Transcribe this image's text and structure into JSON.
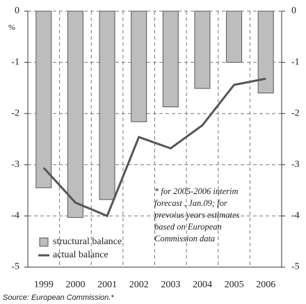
{
  "chart_data": {
    "type": "bar_line",
    "categories": [
      "1999",
      "2000",
      "2001",
      "2002",
      "2003",
      "2004",
      "2005",
      "2006"
    ],
    "series": [
      {
        "name": "structural balance",
        "type": "bar",
        "color": "#bdbdbd",
        "values": [
          -3.45,
          -4.03,
          -3.68,
          -2.16,
          -1.87,
          -1.51,
          -1.0,
          -1.6
        ]
      },
      {
        "name": "actual balance",
        "type": "line",
        "color": "#555555",
        "values": [
          -3.06,
          -3.74,
          -4.0,
          -2.46,
          -2.68,
          -2.23,
          -1.44,
          -1.32
        ]
      }
    ],
    "ylim": [
      -5,
      0
    ],
    "yticks": [
      0,
      -1,
      -2,
      -3,
      -4,
      -5
    ],
    "y2lim": [
      -5,
      0
    ],
    "y2ticks": [
      0,
      -1,
      -2,
      -3,
      -4,
      -5
    ],
    "y_unit": "%",
    "annotation": [
      "* for 2005-2006 interim",
      "forecast , Jan.09; for",
      "prevoius years estimates",
      "based on European",
      "Commission data"
    ],
    "source": "Source: European Commission.*",
    "grid": true
  }
}
